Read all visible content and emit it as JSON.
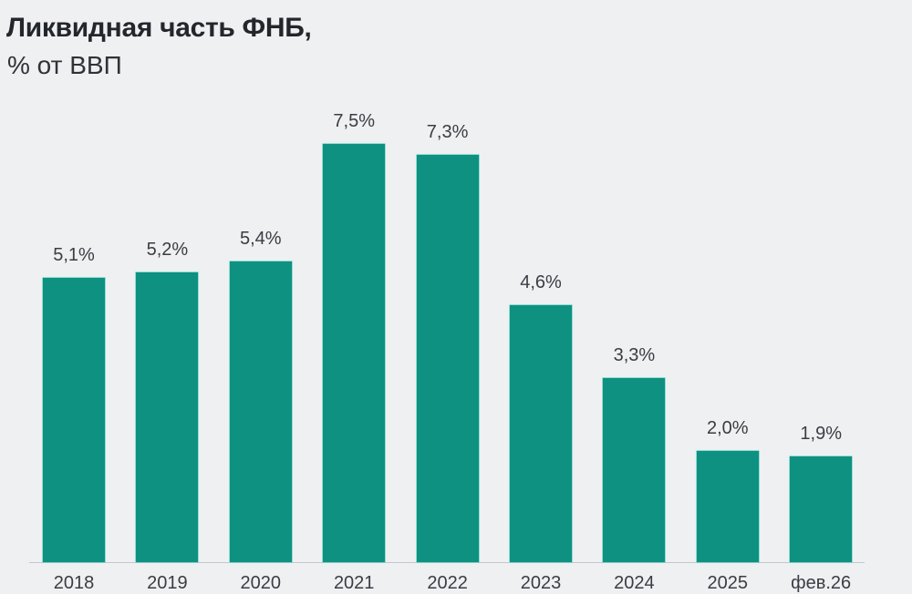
{
  "header": {
    "title": "Ликвидная часть ФНБ,",
    "subtitle": "% от ВВП"
  },
  "colors": {
    "bar": "#0e9180",
    "background": "#eef0f2",
    "text": "#3a3d42",
    "axis": "#c4c7cb"
  },
  "chart_data": {
    "type": "bar",
    "title": "Ликвидная часть ФНБ, % от ВВП",
    "xlabel": "",
    "ylabel": "% от ВВП",
    "categories": [
      "2018",
      "2019",
      "2020",
      "2021",
      "2022",
      "2023",
      "2024",
      "2025",
      "фев.26"
    ],
    "values": [
      5.1,
      5.2,
      5.4,
      7.5,
      7.3,
      4.6,
      3.3,
      2.0,
      1.9
    ],
    "value_labels": [
      "5,1%",
      "5,2%",
      "5,4%",
      "7,5%",
      "7,3%",
      "4,6%",
      "3,3%",
      "2,0%",
      "1,9%"
    ],
    "ylim": [
      0,
      8
    ],
    "grid": false,
    "legend": null
  }
}
